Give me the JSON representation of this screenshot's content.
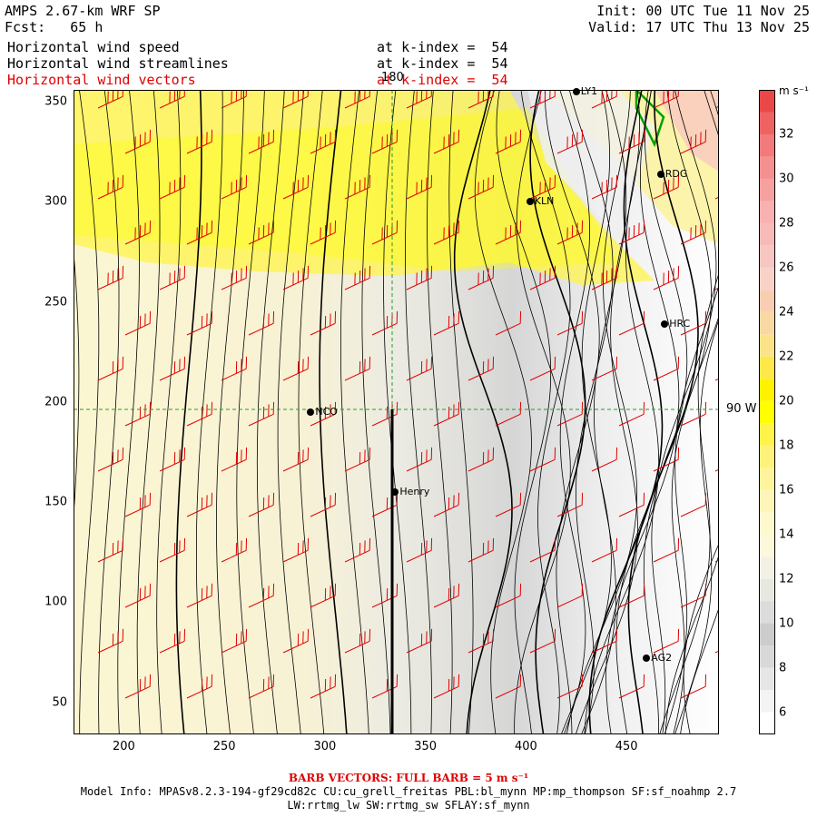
{
  "header": {
    "model_title": "AMPS 2.67-km WRF SP",
    "forecast": "Fcst:   65 h",
    "init": "Init: 00 UTC Tue 11 Nov 25",
    "valid": "Valid: 17 UTC Thu 13 Nov 25",
    "fields": [
      {
        "name": "Horizontal wind speed",
        "level": "at k-index =  54",
        "color": "#000000"
      },
      {
        "name": "Horizontal wind streamlines",
        "level": "at k-index =  54",
        "color": "#000000"
      },
      {
        "name": "Horizontal wind vectors",
        "level": "at k-index =  54",
        "color": "#e00000"
      }
    ]
  },
  "map": {
    "x_ticks": [
      "200",
      "250",
      "300",
      "350",
      "400",
      "450"
    ],
    "y_ticks": [
      "50",
      "100",
      "150",
      "200",
      "250",
      "300",
      "350"
    ],
    "x_tick_values": [
      200,
      250,
      300,
      350,
      400,
      450
    ],
    "y_tick_values": [
      50,
      100,
      150,
      200,
      250,
      300,
      350
    ],
    "x_range": [
      175,
      496
    ],
    "y_range": [
      34,
      356
    ],
    "meridian_label": "180",
    "parallel_label": "90 W",
    "stations": [
      {
        "label": "NCO",
        "x": 293,
        "y": 195
      },
      {
        "label": "Henry",
        "x": 335,
        "y": 155
      },
      {
        "label": "KLN",
        "x": 402,
        "y": 300
      },
      {
        "label": "RDG",
        "x": 467,
        "y": 314
      },
      {
        "label": "HRC",
        "x": 469,
        "y": 239
      },
      {
        "label": "AG2",
        "x": 460,
        "y": 72
      },
      {
        "label": "LY1",
        "x": 425,
        "y": 355
      }
    ]
  },
  "colorbar": {
    "units": "m s⁻¹",
    "labels": [
      "6",
      "8",
      "10",
      "12",
      "14",
      "16",
      "18",
      "20",
      "22",
      "24",
      "26",
      "28",
      "30",
      "32"
    ],
    "levels": [
      5,
      6,
      7,
      8,
      9,
      10,
      11,
      12,
      13,
      14,
      15,
      16,
      17,
      18,
      19,
      20,
      21,
      22,
      23,
      24,
      25,
      26,
      27,
      28,
      29,
      30,
      31,
      32,
      33,
      34
    ],
    "colors": [
      "#ffffff",
      "#f4f4f4",
      "#e6e6e6",
      "#d8d8d8",
      "#cccccc",
      "#dcdcdc",
      "#e8e8e2",
      "#f2f1e4",
      "#fbf8dc",
      "#fdf9cc",
      "#fdf6b8",
      "#fdf49c",
      "#fef27a",
      "#fff34a",
      "#ffff00",
      "#fff200",
      "#fde84a",
      "#fce38a",
      "#fad8a4",
      "#f8cdb2",
      "#f8d2c8",
      "#f8c6c2",
      "#f8bab8",
      "#f8b0b0",
      "#f6a0a0",
      "#f49090",
      "#f27a7a",
      "#ee6262",
      "#ea4848"
    ]
  },
  "footer": {
    "barb_note": "BARB VECTORS:  FULL BARB = 5 m s⁻¹",
    "model_info_1": "Model Info: MPASv8.2.3-194-gf29cd82c CU:cu_grell_freitas PBL:bl_mynn MP:mp_thompson SF:sf_noahmp 2.7",
    "model_info_2": "LW:rrtmg_lw SW:rrtmg_sw SFLAY:sf_mynn"
  }
}
